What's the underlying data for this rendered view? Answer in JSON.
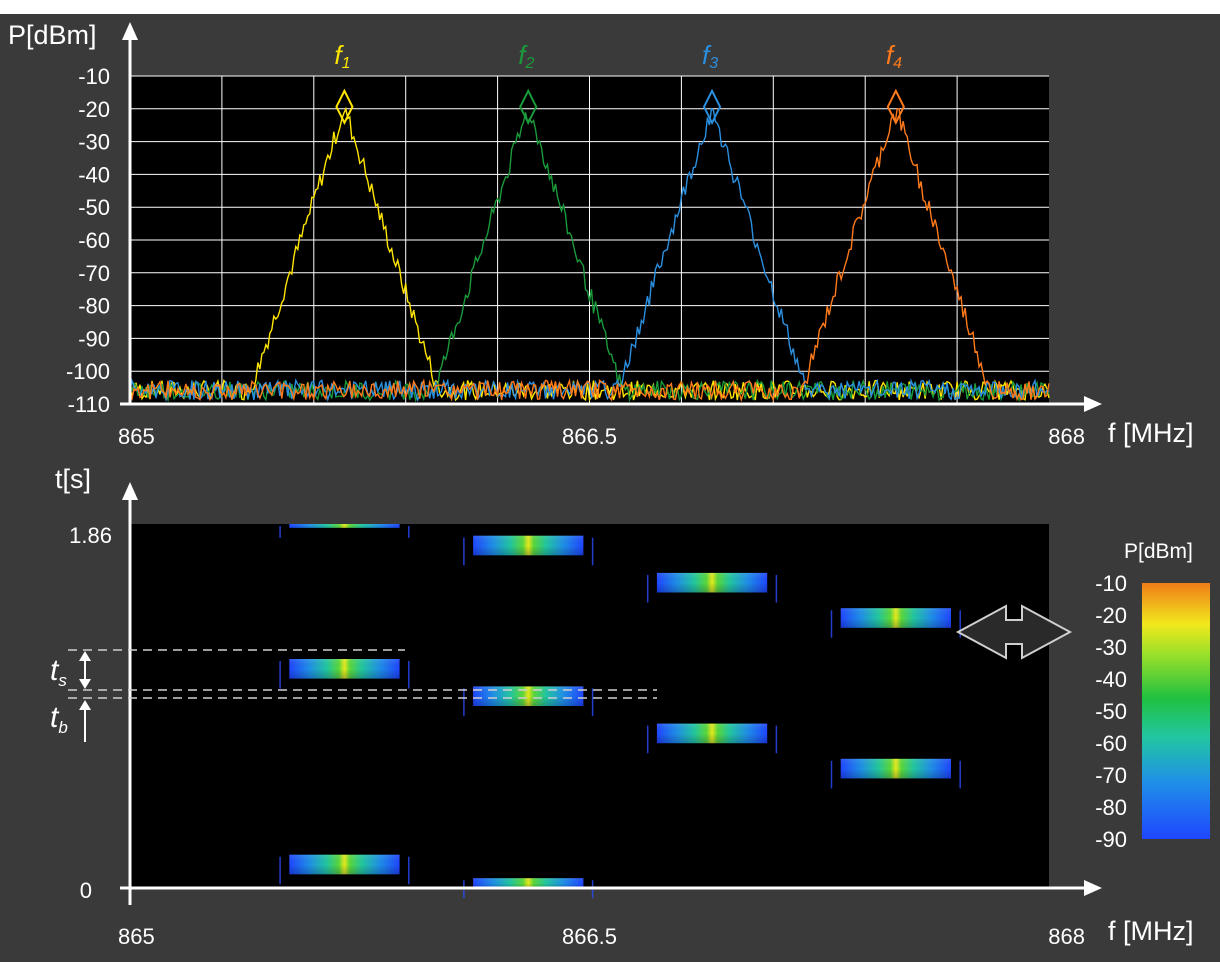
{
  "chart_data": [
    {
      "type": "line",
      "title": "",
      "ylabel": "P[dBm]",
      "xlabel": "f [MHz]",
      "xlim": [
        865,
        868
      ],
      "ylim": [
        -110,
        -10
      ],
      "x_ticks": [
        "865",
        "866.5",
        "868"
      ],
      "y_ticks": [
        "-10",
        "-20",
        "-30",
        "-40",
        "-50",
        "-60",
        "-70",
        "-80",
        "-90",
        "-100",
        "-110"
      ],
      "grid": true,
      "noise_floor": -107,
      "series": [
        {
          "name": "f1",
          "center": 865.7,
          "peak": -20,
          "color": "#ffe600",
          "label_main": "f",
          "label_sub": "1"
        },
        {
          "name": "f2",
          "center": 866.3,
          "peak": -20,
          "color": "#1a9a3a",
          "label_main": "f",
          "label_sub": "2"
        },
        {
          "name": "f3",
          "center": 866.9,
          "peak": -20,
          "color": "#2b8fe0",
          "label_main": "f",
          "label_sub": "3"
        },
        {
          "name": "f4",
          "center": 867.5,
          "peak": -20,
          "color": "#ff7a1a",
          "label_main": "f",
          "label_sub": "4"
        }
      ]
    },
    {
      "type": "heatmap",
      "title": "",
      "ylabel": "t[s]",
      "xlabel": "f [MHz]",
      "xlim": [
        865,
        868
      ],
      "ylim": [
        0,
        1.86
      ],
      "x_ticks": [
        "865",
        "866.5",
        "868"
      ],
      "y_ticks": [
        "0",
        "1.86"
      ],
      "colorbar": {
        "label": "P[dBm]",
        "ticks": [
          "-10",
          "-20",
          "-30",
          "-40",
          "-50",
          "-60",
          "-70",
          "-80",
          "-90"
        ],
        "min": -90,
        "max": -10
      },
      "bursts": [
        {
          "channel": "f1",
          "t_start": 1.84,
          "t_end": 1.86
        },
        {
          "channel": "f1",
          "t_start": 1.07,
          "t_end": 1.17
        },
        {
          "channel": "f1",
          "t_start": 0.07,
          "t_end": 0.17
        },
        {
          "channel": "f2",
          "t_start": 1.7,
          "t_end": 1.8
        },
        {
          "channel": "f2",
          "t_start": 0.93,
          "t_end": 1.03
        },
        {
          "channel": "f2",
          "t_start": 0.0,
          "t_end": 0.05
        },
        {
          "channel": "f3",
          "t_start": 1.51,
          "t_end": 1.61
        },
        {
          "channel": "f3",
          "t_start": 0.74,
          "t_end": 0.84
        },
        {
          "channel": "f4",
          "t_start": 1.33,
          "t_end": 1.43
        },
        {
          "channel": "f4",
          "t_start": 0.56,
          "t_end": 0.66
        }
      ],
      "annotations": {
        "ts_main": "t",
        "ts_sub": "s",
        "tb_main": "t",
        "tb_sub": "b"
      }
    }
  ]
}
